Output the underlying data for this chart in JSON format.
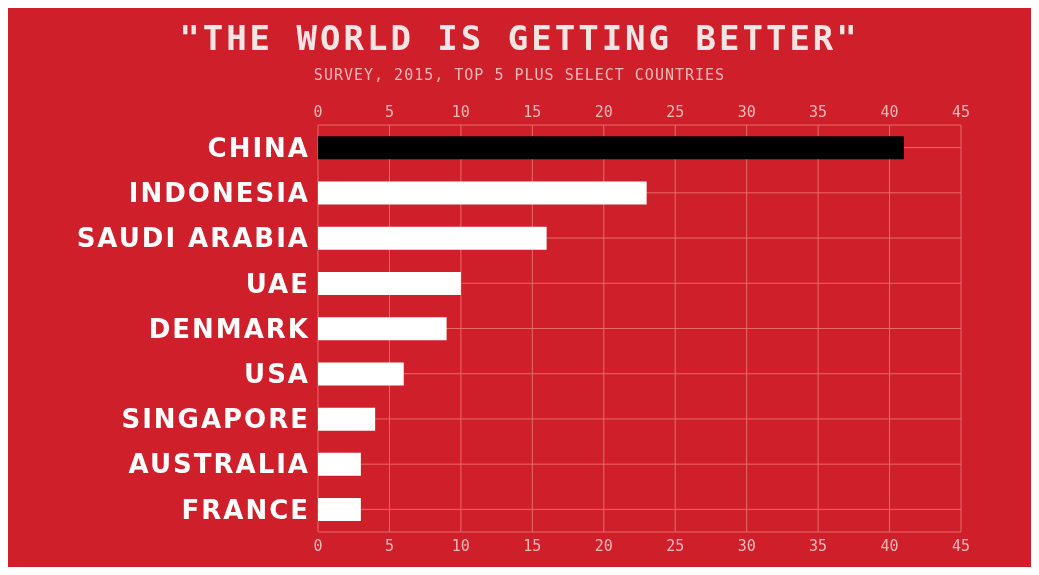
{
  "chart_data": {
    "type": "bar",
    "orientation": "horizontal",
    "title": "\"THE WORLD IS GETTING BETTER\"",
    "subtitle": "SURVEY, 2015, TOP 5 PLUS SELECT COUNTRIES",
    "categories": [
      "CHINA",
      "INDONESIA",
      "SAUDI ARABIA",
      "UAE",
      "DENMARK",
      "USA",
      "SINGAPORE",
      "AUSTRALIA",
      "FRANCE"
    ],
    "values": [
      41,
      23,
      16,
      10,
      9,
      6,
      4,
      3,
      3
    ],
    "colors": [
      "#000000",
      "#ffffff",
      "#ffffff",
      "#ffffff",
      "#ffffff",
      "#ffffff",
      "#ffffff",
      "#ffffff",
      "#ffffff"
    ],
    "xlim": [
      0,
      45
    ],
    "xticks": [
      0,
      5,
      10,
      15,
      20,
      25,
      30,
      35,
      40,
      45
    ],
    "x2lim": [
      0,
      45
    ],
    "x2ticks": [
      0,
      5,
      10,
      15,
      20,
      25,
      30,
      35,
      40,
      45
    ],
    "grid": true
  }
}
